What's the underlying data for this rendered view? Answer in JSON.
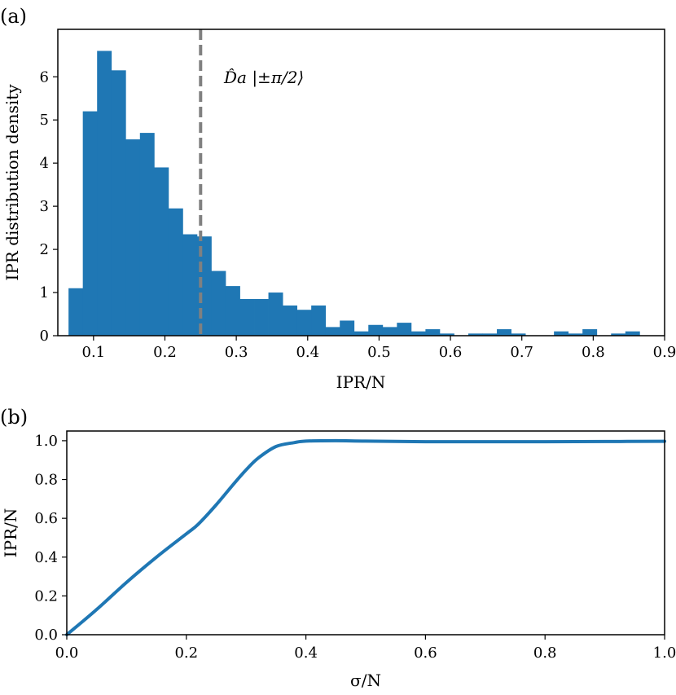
{
  "chart_data": [
    {
      "panel_label": "(a)",
      "type": "bar",
      "subtype": "histogram",
      "xlabel": "IPR/N",
      "ylabel": "IPR distribution density",
      "xlim": [
        0.05,
        0.9
      ],
      "ylim": [
        0,
        7.1
      ],
      "xticks": [
        0.1,
        0.2,
        0.3,
        0.4,
        0.5,
        0.6,
        0.7,
        0.8,
        0.9
      ],
      "yticks": [
        0,
        1,
        2,
        3,
        4,
        5,
        6
      ],
      "bin_width": 0.02,
      "bar_color": "#1f77b4",
      "bins": [
        {
          "x": 0.075,
          "y": 1.1
        },
        {
          "x": 0.095,
          "y": 5.2
        },
        {
          "x": 0.115,
          "y": 6.6
        },
        {
          "x": 0.135,
          "y": 6.15
        },
        {
          "x": 0.155,
          "y": 4.55
        },
        {
          "x": 0.175,
          "y": 4.7
        },
        {
          "x": 0.195,
          "y": 3.9
        },
        {
          "x": 0.215,
          "y": 2.95
        },
        {
          "x": 0.235,
          "y": 2.35
        },
        {
          "x": 0.255,
          "y": 2.3
        },
        {
          "x": 0.275,
          "y": 1.5
        },
        {
          "x": 0.295,
          "y": 1.15
        },
        {
          "x": 0.315,
          "y": 0.85
        },
        {
          "x": 0.335,
          "y": 0.85
        },
        {
          "x": 0.355,
          "y": 1.0
        },
        {
          "x": 0.375,
          "y": 0.7
        },
        {
          "x": 0.395,
          "y": 0.6
        },
        {
          "x": 0.415,
          "y": 0.7
        },
        {
          "x": 0.435,
          "y": 0.2
        },
        {
          "x": 0.455,
          "y": 0.35
        },
        {
          "x": 0.475,
          "y": 0.1
        },
        {
          "x": 0.495,
          "y": 0.25
        },
        {
          "x": 0.515,
          "y": 0.2
        },
        {
          "x": 0.535,
          "y": 0.3
        },
        {
          "x": 0.555,
          "y": 0.1
        },
        {
          "x": 0.575,
          "y": 0.15
        },
        {
          "x": 0.595,
          "y": 0.05
        },
        {
          "x": 0.635,
          "y": 0.05
        },
        {
          "x": 0.655,
          "y": 0.05
        },
        {
          "x": 0.675,
          "y": 0.15
        },
        {
          "x": 0.695,
          "y": 0.05
        },
        {
          "x": 0.755,
          "y": 0.1
        },
        {
          "x": 0.775,
          "y": 0.05
        },
        {
          "x": 0.795,
          "y": 0.15
        },
        {
          "x": 0.835,
          "y": 0.05
        },
        {
          "x": 0.855,
          "y": 0.1
        }
      ],
      "vline": {
        "x": 0.25,
        "color": "#808080",
        "style": "dashed",
        "label": "D̂a |±π/2⟩"
      }
    },
    {
      "panel_label": "(b)",
      "type": "line",
      "xlabel": "σ/N",
      "ylabel": "IPR/N",
      "xlim": [
        0,
        1
      ],
      "ylim": [
        0,
        1.05
      ],
      "xticks": [
        0.0,
        0.2,
        0.4,
        0.6,
        0.8,
        1.0
      ],
      "yticks": [
        0.0,
        0.2,
        0.4,
        0.6,
        0.8,
        1.0
      ],
      "line_color": "#1f77b4",
      "series": [
        {
          "x": [
            0.0,
            0.05,
            0.1,
            0.15,
            0.2,
            0.22,
            0.25,
            0.28,
            0.3,
            0.32,
            0.35,
            0.38,
            0.4,
            0.45,
            0.5,
            0.6,
            0.7,
            0.8,
            0.9,
            1.0
          ],
          "values": [
            0.0,
            0.13,
            0.27,
            0.4,
            0.52,
            0.57,
            0.67,
            0.78,
            0.85,
            0.91,
            0.97,
            0.99,
            0.998,
            1.0,
            0.998,
            0.995,
            0.995,
            0.995,
            0.996,
            0.997
          ]
        }
      ]
    }
  ]
}
